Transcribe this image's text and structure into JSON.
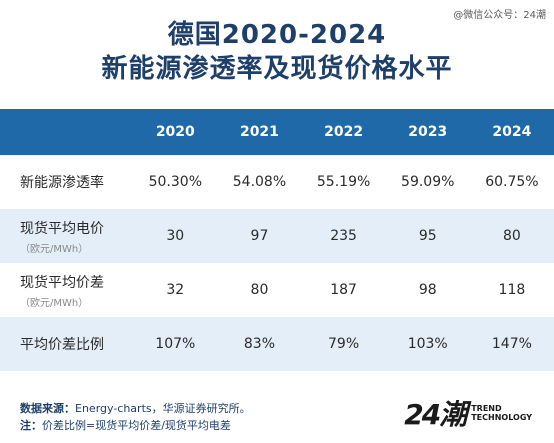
{
  "watermark": "@微信公众号：24潮",
  "title": {
    "line1": "德国2020-2024",
    "line2": "新能源渗透率及现货价格水平"
  },
  "table": {
    "headers": [
      "",
      "2020",
      "2021",
      "2022",
      "2023",
      "2024"
    ],
    "rows": [
      {
        "label": "新能源渗透率",
        "sub": "",
        "values": [
          "50.30%",
          "54.08%",
          "55.19%",
          "59.09%",
          "60.75%"
        ]
      },
      {
        "label": "现货平均电价",
        "sub": "（欧元/MWh）",
        "values": [
          "30",
          "97",
          "235",
          "95",
          "80"
        ]
      },
      {
        "label": "现货平均价差",
        "sub": "（欧元/MWh）",
        "values": [
          "32",
          "80",
          "187",
          "98",
          "118"
        ]
      },
      {
        "label": "平均价差比例",
        "sub": "",
        "values": [
          "107%",
          "83%",
          "79%",
          "103%",
          "147%"
        ]
      }
    ]
  },
  "footer": {
    "source_label": "数据来源：",
    "source_text": "Energy-charts，华源证券研究所。",
    "note_label": "注：",
    "note_text": "价差比例=现货平均价差/现货平均电差"
  },
  "logo": {
    "mark": "24潮",
    "line1": "TREND",
    "line2": "TECHNOLOGY"
  }
}
